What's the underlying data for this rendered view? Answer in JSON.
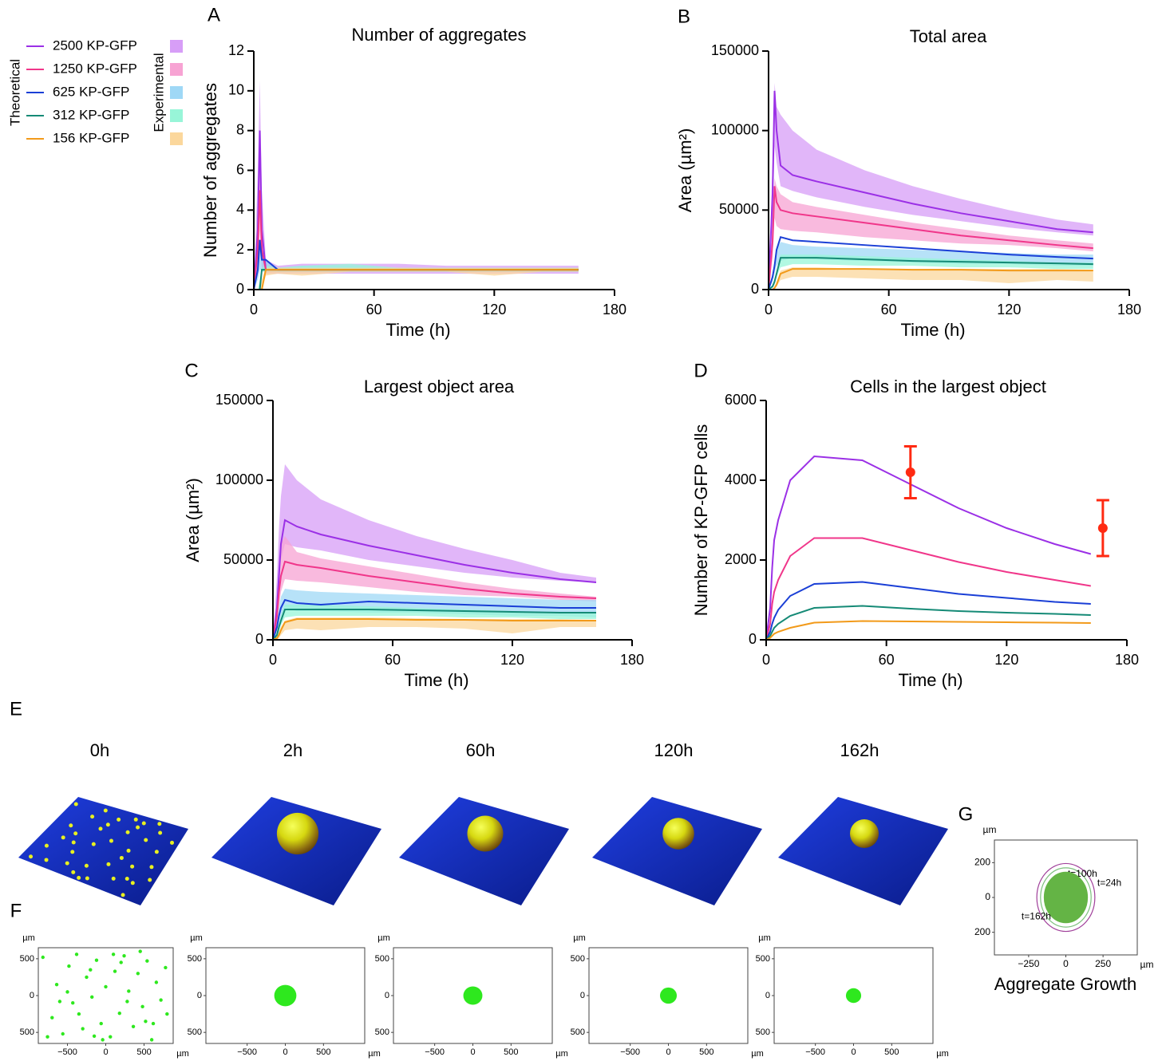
{
  "legend": {
    "theoretical_label": "Theoretical",
    "experimental_label": "Experimental",
    "entries": [
      {
        "name": "2500 KP-GFP",
        "color": "#9b30e6",
        "band_color": "#d79ef7"
      },
      {
        "name": "1250 KP-GFP",
        "color": "#f0368a",
        "band_color": "#f7a3d3"
      },
      {
        "name": "625 KP-GFP",
        "color": "#1a3fd6",
        "band_color": "#9fd8f6"
      },
      {
        "name": "312 KP-GFP",
        "color": "#158a76",
        "band_color": "#98f5d8"
      },
      {
        "name": "156 KP-GFP",
        "color": "#f29a1a",
        "band_color": "#fbd79c"
      }
    ]
  },
  "chart_data": [
    {
      "type": "line",
      "panel": "A",
      "title": "Number of aggregates",
      "x_label": "Time (h)",
      "y_label": "Number of aggregates",
      "xlim": [
        0,
        180
      ],
      "xticks": [
        0,
        60,
        120,
        180
      ],
      "ylim": [
        0,
        12
      ],
      "yticks": [
        0,
        2,
        4,
        6,
        8,
        10,
        12
      ],
      "x": [
        0,
        2,
        3,
        4,
        6,
        12,
        24,
        48,
        72,
        96,
        120,
        144,
        162
      ],
      "series": [
        {
          "values": [
            0,
            3,
            8,
            3,
            1,
            1,
            1,
            1,
            1,
            1,
            1,
            1,
            1
          ],
          "lower": [
            0,
            1,
            5,
            1,
            0.8,
            0.8,
            0.8,
            0.8,
            0.8,
            0.8,
            0.8,
            0.8,
            0.8
          ],
          "upper": [
            0,
            6,
            10.5,
            5,
            1.5,
            1.2,
            1.3,
            1.3,
            1.3,
            1.2,
            1.2,
            1.2,
            1.2
          ]
        },
        {
          "values": [
            0,
            2,
            5,
            2,
            1,
            1,
            1,
            1,
            1,
            1,
            1,
            1,
            1
          ],
          "lower": [
            0,
            1,
            3,
            1,
            0.8,
            0.9,
            0.9,
            0.9,
            0.9,
            0.9,
            0.9,
            0.9,
            0.9
          ],
          "upper": [
            0,
            4,
            7,
            3,
            1.3,
            1.1,
            1.1,
            1.1,
            1.1,
            1.1,
            1.1,
            1.1,
            1.1
          ]
        },
        {
          "values": [
            0,
            1,
            2.5,
            1.5,
            1.5,
            1,
            1,
            1,
            1,
            1,
            1,
            1,
            1
          ],
          "lower": [
            0,
            0.5,
            1,
            1,
            1,
            0.9,
            0.9,
            0.9,
            0.9,
            0.9,
            0.9,
            0.9,
            0.9
          ],
          "upper": [
            0,
            1.5,
            2.5,
            2,
            1.5,
            1.1,
            1.2,
            1.2,
            1.1,
            1.1,
            1.1,
            1.1,
            1.1
          ]
        },
        {
          "values": [
            0,
            0,
            0,
            1,
            1,
            1,
            1,
            1,
            1,
            1,
            1,
            1,
            1
          ],
          "lower": [
            0,
            0,
            0,
            0.9,
            0.9,
            0.9,
            0.9,
            0.9,
            0.9,
            0.9,
            0.9,
            0.9,
            0.9
          ],
          "upper": [
            0,
            0,
            0.5,
            1.1,
            1.2,
            1.1,
            1.2,
            1.3,
            1.1,
            1.1,
            1.1,
            1.1,
            1.1
          ]
        },
        {
          "values": [
            0,
            0,
            0,
            0,
            1,
            1,
            1,
            1,
            1,
            1,
            1,
            1,
            1
          ],
          "lower": [
            0,
            0,
            0,
            0,
            0.7,
            0.8,
            0.7,
            0.9,
            0.9,
            0.9,
            0.7,
            0.9,
            0.9
          ],
          "upper": [
            0,
            0,
            0,
            0.5,
            1.1,
            1.1,
            1.1,
            1.1,
            1.1,
            1.1,
            1.1,
            1.1,
            1.1
          ]
        }
      ]
    },
    {
      "type": "line",
      "panel": "B",
      "title": "Total area",
      "x_label": "Time (h)",
      "y_label": "Area (µm²)",
      "xlim": [
        0,
        180
      ],
      "xticks": [
        0,
        60,
        120,
        180
      ],
      "ylim": [
        0,
        150000
      ],
      "yticks": [
        0,
        50000,
        100000,
        150000
      ],
      "x": [
        0,
        2,
        3,
        4,
        6,
        12,
        24,
        48,
        72,
        96,
        120,
        144,
        162
      ],
      "series": [
        {
          "values": [
            0,
            60000,
            125000,
            100000,
            78000,
            72000,
            68000,
            61000,
            54000,
            48000,
            43000,
            38000,
            36000
          ],
          "lower": [
            0,
            40000,
            90000,
            80000,
            65000,
            62000,
            58000,
            52000,
            47000,
            43000,
            39000,
            36000,
            34000
          ],
          "upper": [
            0,
            80000,
            130000,
            115000,
            110000,
            100000,
            88000,
            75000,
            65000,
            57000,
            50000,
            44000,
            41000
          ]
        },
        {
          "values": [
            0,
            30000,
            65000,
            55000,
            50000,
            48000,
            46000,
            42000,
            38000,
            34000,
            31000,
            28000,
            26000
          ],
          "lower": [
            0,
            20000,
            45000,
            40000,
            38000,
            37000,
            36000,
            33000,
            31000,
            29000,
            28000,
            26000,
            24000
          ],
          "upper": [
            0,
            40000,
            70000,
            65000,
            60000,
            55000,
            52000,
            47000,
            42000,
            38000,
            34000,
            31000,
            29000
          ]
        },
        {
          "values": [
            0,
            8000,
            15000,
            25000,
            33000,
            31000,
            30000,
            28000,
            26000,
            24000,
            22000,
            20500,
            19500
          ],
          "lower": [
            0,
            5000,
            10000,
            15000,
            18000,
            20000,
            19000,
            18000,
            17000,
            16000,
            16000,
            15000,
            15000
          ],
          "upper": [
            0,
            10000,
            18000,
            25000,
            30000,
            28000,
            27000,
            26000,
            25000,
            24000,
            23000,
            22000,
            22000
          ]
        },
        {
          "values": [
            0,
            2000,
            5000,
            10000,
            20000,
            20000,
            20000,
            19000,
            18000,
            17500,
            17000,
            16500,
            16000
          ],
          "lower": [
            0,
            1000,
            3000,
            8000,
            14000,
            16000,
            16000,
            15000,
            15000,
            14000,
            14000,
            13000,
            13000
          ],
          "upper": [
            0,
            3000,
            7000,
            12000,
            22000,
            22000,
            22000,
            21000,
            20000,
            19000,
            18000,
            17000,
            17000
          ]
        },
        {
          "values": [
            0,
            0,
            1000,
            3000,
            10000,
            13000,
            13000,
            13000,
            12500,
            12500,
            12000,
            12000,
            12000
          ],
          "lower": [
            0,
            0,
            500,
            2000,
            6000,
            8000,
            8000,
            7000,
            6000,
            6000,
            4000,
            6000,
            5000
          ],
          "upper": [
            0,
            0,
            2000,
            5000,
            12000,
            14000,
            14000,
            13000,
            13000,
            13000,
            13000,
            13000,
            12500
          ]
        }
      ]
    },
    {
      "type": "line",
      "panel": "C",
      "title": "Largest object area",
      "x_label": "Time (h)",
      "y_label": "Area (µm²)",
      "xlim": [
        0,
        180
      ],
      "xticks": [
        0,
        60,
        120,
        180
      ],
      "ylim": [
        0,
        150000
      ],
      "yticks": [
        0,
        50000,
        100000,
        150000
      ],
      "x": [
        0,
        2,
        3,
        4,
        6,
        12,
        24,
        48,
        72,
        96,
        120,
        144,
        162
      ],
      "series": [
        {
          "values": [
            0,
            20000,
            40000,
            60000,
            75000,
            71000,
            66000,
            59000,
            53000,
            47000,
            42000,
            38000,
            36000
          ],
          "lower": [
            0,
            10000,
            30000,
            50000,
            60000,
            58000,
            56000,
            50000,
            46000,
            42000,
            39000,
            37000,
            36000
          ],
          "upper": [
            0,
            40000,
            70000,
            90000,
            110000,
            100000,
            88000,
            75000,
            65000,
            57000,
            50000,
            42000,
            39000
          ]
        },
        {
          "values": [
            0,
            15000,
            30000,
            40000,
            49000,
            47000,
            45000,
            40000,
            36000,
            32000,
            29000,
            27000,
            26000
          ],
          "lower": [
            0,
            10000,
            20000,
            30000,
            38000,
            37000,
            36000,
            33000,
            30000,
            28000,
            27000,
            25000,
            24000
          ],
          "upper": [
            0,
            25000,
            45000,
            60000,
            65000,
            55000,
            51000,
            46000,
            41000,
            36000,
            32000,
            29000,
            27000
          ]
        },
        {
          "values": [
            0,
            8000,
            15000,
            20000,
            25000,
            23000,
            22000,
            24000,
            23000,
            22000,
            21000,
            20000,
            20000
          ],
          "lower": [
            0,
            5000,
            10000,
            15000,
            20000,
            18000,
            18000,
            17000,
            17000,
            16000,
            15000,
            15000,
            14000
          ],
          "upper": [
            0,
            10000,
            20000,
            27000,
            32000,
            31000,
            30000,
            29000,
            28000,
            27000,
            26000,
            25000,
            25000
          ]
        },
        {
          "values": [
            0,
            3000,
            8000,
            12000,
            19000,
            19000,
            19000,
            19000,
            18500,
            18000,
            17500,
            17000,
            17000
          ],
          "lower": [
            0,
            2000,
            5000,
            9000,
            14000,
            15000,
            15000,
            15000,
            15000,
            14000,
            14000,
            13000,
            13000
          ],
          "upper": [
            0,
            5000,
            10000,
            15000,
            22000,
            22000,
            22000,
            21000,
            20000,
            19000,
            18000,
            17000,
            17000
          ]
        },
        {
          "values": [
            0,
            1000,
            3000,
            6000,
            11000,
            13000,
            13000,
            13000,
            12500,
            12500,
            12000,
            12000,
            12000
          ],
          "lower": [
            0,
            0,
            1000,
            3000,
            6000,
            7000,
            6000,
            8000,
            8000,
            7000,
            4000,
            8000,
            8000
          ],
          "upper": [
            0,
            2000,
            5000,
            8000,
            12000,
            14000,
            14000,
            14000,
            13500,
            13000,
            13000,
            13000,
            12500
          ]
        }
      ]
    },
    {
      "type": "line",
      "panel": "D",
      "title": "Cells in the largest object",
      "x_label": "Time (h)",
      "y_label": "Number of KP-GFP cells",
      "xlim": [
        0,
        180
      ],
      "xticks": [
        0,
        60,
        120,
        180
      ],
      "ylim": [
        0,
        6000
      ],
      "yticks": [
        0,
        2000,
        4000,
        6000
      ],
      "x": [
        0,
        2,
        3,
        4,
        6,
        12,
        24,
        48,
        72,
        96,
        120,
        144,
        162
      ],
      "series": [
        {
          "values": [
            0,
            800,
            1800,
            2500,
            3000,
            4000,
            4600,
            4500,
            3900,
            3300,
            2800,
            2400,
            2150
          ]
        },
        {
          "values": [
            0,
            400,
            900,
            1200,
            1500,
            2100,
            2550,
            2550,
            2250,
            1950,
            1700,
            1500,
            1350
          ]
        },
        {
          "values": [
            0,
            200,
            400,
            550,
            750,
            1100,
            1400,
            1450,
            1300,
            1150,
            1050,
            950,
            900
          ]
        },
        {
          "values": [
            0,
            100,
            200,
            300,
            400,
            600,
            800,
            850,
            780,
            720,
            680,
            650,
            620
          ]
        },
        {
          "values": [
            0,
            50,
            100,
            150,
            200,
            300,
            430,
            470,
            460,
            450,
            440,
            430,
            420
          ]
        }
      ],
      "error_points": {
        "color": "#ff2a12",
        "x": [
          72,
          168
        ],
        "values": [
          4200,
          2800
        ],
        "errors": [
          650,
          700
        ]
      }
    }
  ],
  "panel_e": {
    "panel": "E",
    "times": [
      "0h",
      "2h",
      "60h",
      "120h",
      "162h"
    ]
  },
  "panel_f": {
    "panel": "F",
    "unit": "µm",
    "color": "#2ee81e",
    "ylim": [
      -650,
      650
    ],
    "xticks": [
      {
        "value": -500,
        "label": "−500"
      },
      0,
      500
    ],
    "yticks": [
      {
        "value": -500,
        "label": "500"
      },
      0,
      500
    ],
    "frames": [
      {
        "xlim": [
          -880,
          880
        ],
        "points_x": [
          -820,
          -700,
          -640,
          -560,
          -480,
          -430,
          -380,
          -300,
          -250,
          -180,
          -120,
          -60,
          0,
          60,
          120,
          180,
          240,
          300,
          360,
          420,
          480,
          540,
          600,
          660,
          720,
          780,
          -760,
          -600,
          -350,
          -200,
          -40,
          100,
          280,
          450,
          620,
          800,
          -500,
          -150,
          200,
          520
        ],
        "points_y": [
          520,
          -300,
          150,
          -520,
          400,
          -100,
          560,
          -450,
          250,
          -20,
          480,
          -380,
          120,
          -560,
          330,
          -240,
          540,
          60,
          -420,
          300,
          -150,
          470,
          -600,
          180,
          -60,
          380,
          -560,
          -80,
          -250,
          350,
          -600,
          560,
          -80,
          600,
          -380,
          -250,
          50,
          -550,
          450,
          -350
        ]
      },
      {
        "xlim": [
          -1040,
          1040
        ],
        "radius": 145
      },
      {
        "xlim": [
          -1040,
          1040
        ],
        "radius": 125
      },
      {
        "xlim": [
          -1040,
          1040
        ],
        "radius": 110
      },
      {
        "xlim": [
          -1040,
          1040
        ],
        "radius": 100
      }
    ]
  },
  "panel_g": {
    "panel": "G",
    "title": "Aggregate Growth",
    "unit": "µm",
    "xlim": [
      -480,
      480
    ],
    "ylim": [
      -330,
      330
    ],
    "xticks": [
      {
        "value": -250,
        "label": "−250"
      },
      0,
      250
    ],
    "yticks": [
      {
        "value": -200,
        "label": "200"
      },
      0,
      200
    ],
    "circles": [
      {
        "label": "t=24h",
        "radius": 195,
        "color": "#a0409a",
        "filled": false
      },
      {
        "label": "t=100h",
        "radius": 170,
        "color": "#7cc07c",
        "filled": false
      },
      {
        "label": "t=162h",
        "radius": 145,
        "color": "#64b445",
        "filled": true
      }
    ]
  }
}
